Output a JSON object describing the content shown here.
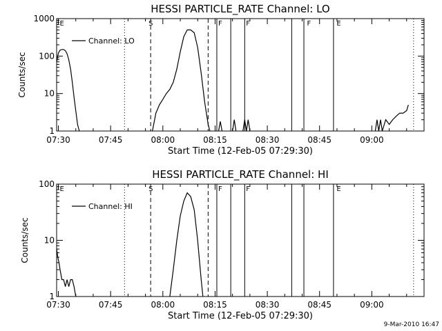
{
  "footer_stamp": "9-Mar-2010 16:47",
  "chart_data": [
    {
      "type": "line",
      "title": "HESSI PARTICLE_RATE Channel: LO",
      "xlabel": "Start Time (12-Feb-05 07:29:30)",
      "ylabel": "Counts/sec",
      "y_scale": "log",
      "ylim": [
        1,
        1000
      ],
      "y_ticks": [
        1,
        10,
        100,
        1000
      ],
      "y_tick_labels": [
        "1",
        "10",
        "100",
        "1000"
      ],
      "xlim": [
        "07:29:30",
        "09:15:00"
      ],
      "x_ticks": [
        "07:30",
        "07:45",
        "08:00",
        "08:15",
        "08:30",
        "08:45",
        "09:00"
      ],
      "grid": false,
      "legend": {
        "position": "top-left",
        "entries": [
          "Channel: LO"
        ]
      },
      "series": [
        {
          "name": "Channel: LO",
          "segments": [
            [
              [
                "07:29:30",
                70
              ],
              [
                "07:30:00",
                120
              ],
              [
                "07:30:30",
                145
              ],
              [
                "07:31:00",
                150
              ],
              [
                "07:31:30",
                150
              ],
              [
                "07:32:00",
                140
              ],
              [
                "07:32:30",
                115
              ],
              [
                "07:33:00",
                80
              ],
              [
                "07:33:30",
                45
              ],
              [
                "07:34:00",
                20
              ],
              [
                "07:34:30",
                8
              ],
              [
                "07:35:00",
                3.5
              ],
              [
                "07:35:30",
                1.5
              ],
              [
                "07:36:00",
                1
              ]
            ],
            [
              [
                "07:57:00",
                1
              ],
              [
                "07:58:00",
                3
              ],
              [
                "07:59:00",
                5
              ],
              [
                "08:00:00",
                7
              ],
              [
                "08:01:00",
                10
              ],
              [
                "08:02:00",
                13
              ],
              [
                "08:03:00",
                20
              ],
              [
                "08:04:00",
                45
              ],
              [
                "08:05:00",
                130
              ],
              [
                "08:06:00",
                330
              ],
              [
                "08:07:00",
                500
              ],
              [
                "08:08:00",
                500
              ],
              [
                "08:09:00",
                420
              ],
              [
                "08:10:00",
                170
              ],
              [
                "08:11:00",
                35
              ],
              [
                "08:12:00",
                6
              ],
              [
                "08:13:00",
                1.5
              ],
              [
                "08:13:30",
                1
              ]
            ],
            [
              [
                "08:16:00",
                1
              ],
              [
                "08:16:30",
                1.8
              ],
              [
                "08:17:00",
                1
              ]
            ],
            [
              [
                "08:20:00",
                1
              ],
              [
                "08:20:30",
                2
              ],
              [
                "08:21:00",
                1
              ]
            ],
            [
              [
                "08:23:00",
                1
              ],
              [
                "08:23:30",
                2
              ],
              [
                "08:24:00",
                1
              ],
              [
                "08:24:30",
                2
              ],
              [
                "08:25:00",
                1
              ]
            ],
            [
              [
                "09:01:00",
                1
              ],
              [
                "09:01:30",
                2
              ],
              [
                "09:02:00",
                1
              ],
              [
                "09:02:30",
                2
              ],
              [
                "09:03:00",
                1
              ],
              [
                "09:04:00",
                2
              ],
              [
                "09:05:00",
                1.5
              ],
              [
                "09:06:00",
                2
              ],
              [
                "09:07:00",
                2.5
              ],
              [
                "09:08:00",
                3
              ],
              [
                "09:09:00",
                3
              ],
              [
                "09:10:00",
                3.5
              ],
              [
                "09:10:30",
                5
              ]
            ]
          ]
        }
      ],
      "flag_labels": [
        {
          "x": "07:30:00",
          "text": "E"
        },
        {
          "x": "07:55:30",
          "text": "S"
        },
        {
          "x": "08:15:30",
          "text": "F"
        },
        {
          "x": "08:23:30",
          "text": "F"
        },
        {
          "x": "08:41:00",
          "text": "F"
        },
        {
          "x": "08:49:30",
          "text": "E"
        }
      ],
      "marker_lines": [
        {
          "x": "07:49:00",
          "style": "dotted"
        },
        {
          "x": "07:56:30",
          "style": "dashed"
        },
        {
          "x": "08:13:00",
          "style": "dashed"
        },
        {
          "x": "08:15:30",
          "style": "solid"
        },
        {
          "x": "08:19:30",
          "style": "solid"
        },
        {
          "x": "08:23:30",
          "style": "solid"
        },
        {
          "x": "08:37:00",
          "style": "solid"
        },
        {
          "x": "08:40:30",
          "style": "solid"
        },
        {
          "x": "08:49:00",
          "style": "solid"
        },
        {
          "x": "09:12:00",
          "style": "dotted"
        }
      ]
    },
    {
      "type": "line",
      "title": "HESSI PARTICLE_RATE Channel: HI",
      "xlabel": "Start Time (12-Feb-05 07:29:30)",
      "ylabel": "Counts/sec",
      "y_scale": "log",
      "ylim": [
        1,
        100
      ],
      "y_ticks": [
        1,
        10,
        100
      ],
      "y_tick_labels": [
        "1",
        "10",
        "100"
      ],
      "xlim": [
        "07:29:30",
        "09:15:00"
      ],
      "x_ticks": [
        "07:30",
        "07:45",
        "08:00",
        "08:15",
        "08:30",
        "08:45",
        "09:00"
      ],
      "grid": false,
      "legend": {
        "position": "top-left",
        "entries": [
          "Channel: HI"
        ]
      },
      "series": [
        {
          "name": "Channel: HI",
          "segments": [
            [
              [
                "07:29:30",
                7
              ],
              [
                "07:29:50",
                5
              ],
              [
                "07:30:10",
                4
              ],
              [
                "07:30:30",
                3
              ],
              [
                "07:31:00",
                2
              ],
              [
                "07:31:30",
                2
              ],
              [
                "07:32:00",
                1.5
              ],
              [
                "07:32:30",
                2
              ],
              [
                "07:33:00",
                1.5
              ],
              [
                "07:33:30",
                2
              ],
              [
                "07:34:00",
                2
              ],
              [
                "07:34:30",
                1.5
              ],
              [
                "07:35:00",
                1
              ]
            ],
            [
              [
                "08:02:00",
                1
              ],
              [
                "08:03:00",
                3
              ],
              [
                "08:04:00",
                10
              ],
              [
                "08:05:00",
                27
              ],
              [
                "08:06:00",
                50
              ],
              [
                "08:07:00",
                70
              ],
              [
                "08:08:00",
                60
              ],
              [
                "08:09:00",
                35
              ],
              [
                "08:10:00",
                10
              ],
              [
                "08:11:00",
                2
              ],
              [
                "08:11:30",
                1
              ]
            ]
          ]
        }
      ],
      "flag_labels": [
        {
          "x": "07:30:00",
          "text": "E"
        },
        {
          "x": "07:55:30",
          "text": "S"
        },
        {
          "x": "08:15:30",
          "text": "F"
        },
        {
          "x": "08:23:30",
          "text": "F"
        },
        {
          "x": "08:49:30",
          "text": "E"
        }
      ],
      "marker_lines": [
        {
          "x": "07:49:00",
          "style": "dotted"
        },
        {
          "x": "07:56:30",
          "style": "dashed"
        },
        {
          "x": "08:13:00",
          "style": "dashed"
        },
        {
          "x": "08:15:30",
          "style": "solid"
        },
        {
          "x": "08:19:30",
          "style": "solid"
        },
        {
          "x": "08:23:30",
          "style": "solid"
        },
        {
          "x": "08:37:00",
          "style": "solid"
        },
        {
          "x": "08:40:30",
          "style": "solid"
        },
        {
          "x": "08:49:00",
          "style": "solid"
        },
        {
          "x": "09:12:00",
          "style": "dotted"
        }
      ]
    }
  ]
}
